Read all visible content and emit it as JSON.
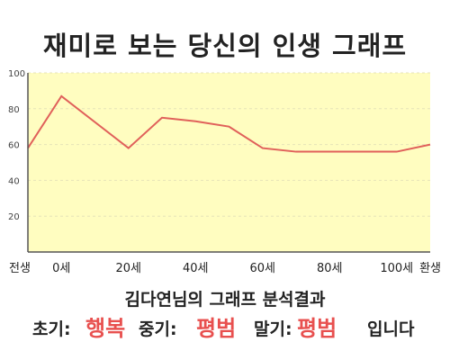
{
  "title": "재미로 보는 당신의 인생 그래프",
  "summary": "김다연님의 그래프 분석결과",
  "verdict": {
    "early_label": "초기:",
    "early_value": "행복",
    "middle_label": "중기:",
    "middle_value": "평범",
    "late_label": "말기:",
    "late_value": "평범",
    "ending": "입니다"
  },
  "colors": {
    "line": "#e0605a",
    "fill": "#fffdc0",
    "value_text": "#e8504f",
    "axis": "#555555"
  },
  "chart_data": {
    "type": "area",
    "title": "재미로 보는 당신의 인생 그래프",
    "xlabel": "",
    "ylabel": "",
    "categories": [
      "전생",
      "0세",
      "20세",
      "40세",
      "60세",
      "80세",
      "100세",
      "환생"
    ],
    "ylim": [
      0,
      100
    ],
    "yticks": [
      20,
      40,
      60,
      80,
      100
    ],
    "grid": true,
    "series": [
      {
        "x": [
          -10,
          0,
          20,
          30,
          40,
          50,
          60,
          70,
          80,
          90,
          100,
          110
        ],
        "values": [
          58,
          87,
          58,
          75,
          73,
          70,
          58,
          56,
          56,
          56,
          56,
          60
        ]
      }
    ]
  }
}
